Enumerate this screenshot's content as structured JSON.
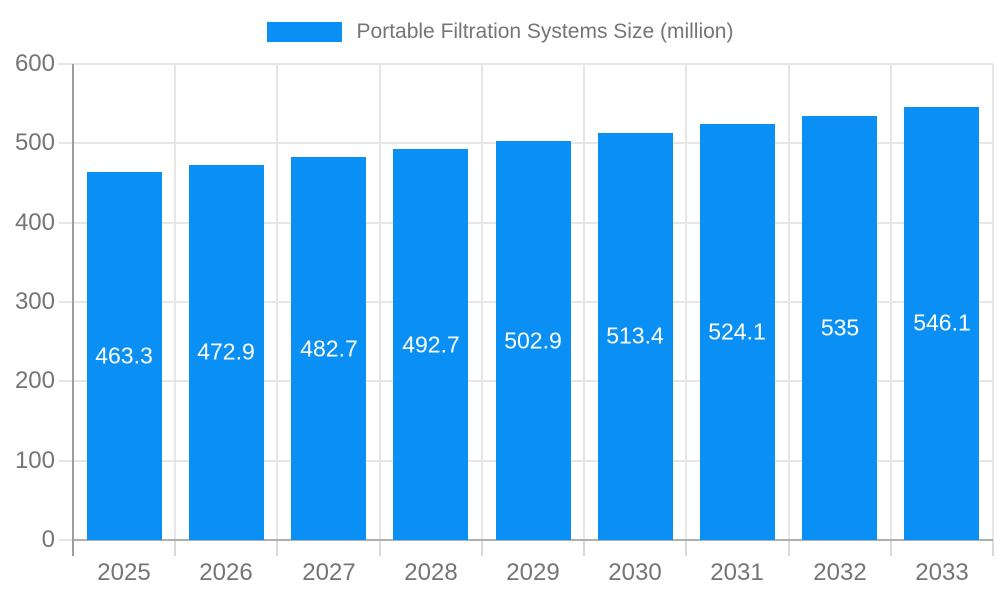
{
  "chart_data": {
    "type": "bar",
    "title": "Portable Filtration Systems Size (million)",
    "categories": [
      "2025",
      "2026",
      "2027",
      "2028",
      "2029",
      "2030",
      "2031",
      "2032",
      "2033"
    ],
    "values": [
      463.3,
      472.9,
      482.7,
      492.7,
      502.9,
      513.4,
      524.1,
      535,
      546.1
    ],
    "value_labels": [
      "463.3",
      "472.9",
      "482.7",
      "492.7",
      "502.9",
      "513.4",
      "524.1",
      "535",
      "546.1"
    ],
    "xlabel": "",
    "ylabel": "",
    "ylim": [
      0,
      600
    ],
    "yticks": [
      0,
      100,
      200,
      300,
      400,
      500,
      600
    ],
    "grid": true,
    "legend_position": "top",
    "colors": {
      "bar": "#0a8ff5",
      "axis_label": "#757575",
      "legend_text": "#757575",
      "value_label": "#ffffff",
      "gridline": "#e6e6e6",
      "axis_line": "#9e9e9e",
      "baseline": "#b0b0b0",
      "tick": "#d9d9d9",
      "background": "#ffffff"
    }
  }
}
